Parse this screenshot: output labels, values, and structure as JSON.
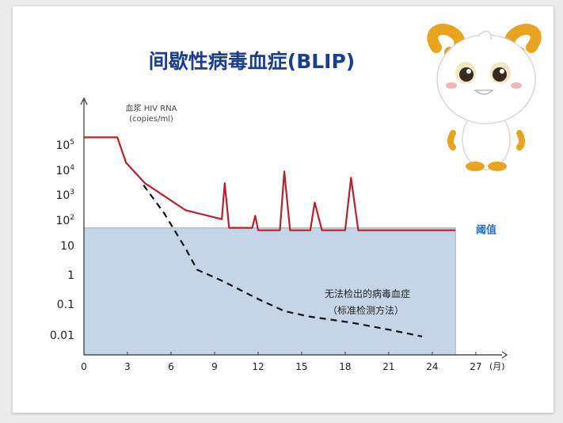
{
  "chart_data": {
    "type": "line",
    "title": "间歇性病毒血症(BLIP)",
    "ylabel_line1": "血浆 HIV RNA",
    "ylabel_line2": "(copies/ml)",
    "xunit": "(月)",
    "x_ticks": [
      "0",
      "3",
      "6",
      "9",
      "12",
      "15",
      "18",
      "21",
      "24",
      "27"
    ],
    "y_ticks": [
      {
        "label": "10",
        "exp": "5",
        "value": 100000
      },
      {
        "label": "10",
        "exp": "4",
        "value": 10000
      },
      {
        "label": "10",
        "exp": "3",
        "value": 1000
      },
      {
        "label": "10",
        "exp": "2",
        "value": 100
      },
      {
        "label": "10",
        "exp": "",
        "value": 10
      },
      {
        "label": "1",
        "exp": "",
        "value": 1
      },
      {
        "label": "0.1",
        "exp": "",
        "value": 0.1
      },
      {
        "label": "0.01",
        "exp": "",
        "value": 0.01
      }
    ],
    "xlim": [
      0,
      27
    ],
    "y_scale": "log",
    "ylim": [
      0.005,
      2000000
    ],
    "threshold": {
      "label": "阈值",
      "value": 50,
      "color": "#c3d5e6"
    },
    "annotation_line1": "无法检出的病毒血症",
    "annotation_line2": "（标准检测方法）",
    "series": [
      {
        "style": "solid",
        "color": "#b5232b",
        "x": [
          0,
          2.3,
          2.9,
          4.2,
          7,
          9.5,
          9.7,
          10,
          11.6,
          11.8,
          12,
          13.5,
          13.8,
          14.2,
          15.6,
          15.9,
          16.4,
          18,
          18.4,
          18.9,
          25.6
        ],
        "y": [
          200000,
          200000,
          20000,
          3000,
          250,
          110,
          3000,
          50,
          50,
          150,
          40,
          40,
          9000,
          40,
          40,
          500,
          40,
          40,
          5000,
          40,
          40
        ]
      },
      {
        "style": "dashed",
        "color": "#111111",
        "x": [
          4.1,
          5.5,
          7,
          7.8,
          9.6,
          12,
          13.8,
          15.5,
          18.5,
          21,
          23.3
        ],
        "y": [
          2500,
          200,
          8,
          1.5,
          0.6,
          0.15,
          0.06,
          0.04,
          0.025,
          0.015,
          0.009
        ]
      }
    ]
  }
}
